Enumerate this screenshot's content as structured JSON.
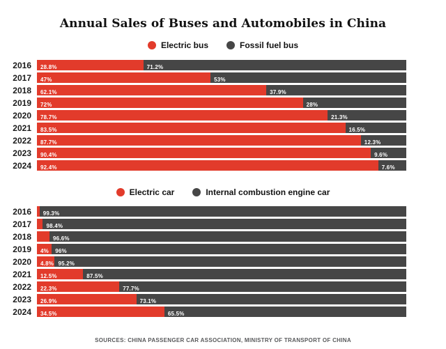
{
  "title": "Annual Sales of Buses and Automobiles in China",
  "source": "SOURCES: CHINA PASSENGER CAR ASSOCIATION, MINISTRY OF TRANSPORT OF CHINA",
  "colors": {
    "electric": "#e23b2b",
    "conventional": "#464646"
  },
  "chart_data": [
    {
      "type": "bar",
      "orientation": "horizontal",
      "stacked": true,
      "xlim": [
        0,
        100
      ],
      "grid": false,
      "legend_position": "top-center",
      "legend": [
        "Electric bus",
        "Fossil fuel bus"
      ],
      "categories": [
        "2016",
        "2017",
        "2018",
        "2019",
        "2020",
        "2021",
        "2022",
        "2023",
        "2024"
      ],
      "series": [
        {
          "name": "Electric bus",
          "color": "#e23b2b",
          "values": [
            28.8,
            47,
            62.1,
            72,
            78.7,
            83.5,
            87.7,
            90.4,
            92.4
          ],
          "labels": [
            "28.8%",
            "47%",
            "62.1%",
            "72%",
            "78.7%",
            "83.5%",
            "87.7%",
            "90.4%",
            "92.4%"
          ]
        },
        {
          "name": "Fossil fuel bus",
          "color": "#464646",
          "values": [
            71.2,
            53,
            37.9,
            28,
            21.3,
            16.5,
            12.3,
            9.6,
            7.6
          ],
          "labels": [
            "71.2%",
            "53%",
            "37.9%",
            "28%",
            "21.3%",
            "16.5%",
            "12.3%",
            "9.6%",
            "7.6%"
          ]
        }
      ]
    },
    {
      "type": "bar",
      "orientation": "horizontal",
      "stacked": true,
      "xlim": [
        0,
        100
      ],
      "grid": false,
      "legend_position": "top-center",
      "legend": [
        "Electric car",
        "Internal combustion engine car"
      ],
      "categories": [
        "2016",
        "2017",
        "2018",
        "2019",
        "2020",
        "2021",
        "2022",
        "2023",
        "2024"
      ],
      "series": [
        {
          "name": "Electric car",
          "color": "#e23b2b",
          "values": [
            0.7,
            1.6,
            3.4,
            4,
            4.8,
            12.5,
            22.3,
            26.9,
            34.5
          ],
          "labels": [
            "",
            "",
            "",
            "4%",
            "4.8%",
            "12.5%",
            "22.3%",
            "26.9%",
            "34.5%"
          ]
        },
        {
          "name": "Internal combustion engine car",
          "color": "#464646",
          "values": [
            99.3,
            98.4,
            96.6,
            96,
            95.2,
            87.5,
            77.7,
            73.1,
            65.5
          ],
          "labels": [
            "99.3%",
            "98.4%",
            "96.6%",
            "96%",
            "95.2%",
            "87.5%",
            "77.7%",
            "73.1%",
            "65.5%"
          ]
        }
      ]
    }
  ]
}
